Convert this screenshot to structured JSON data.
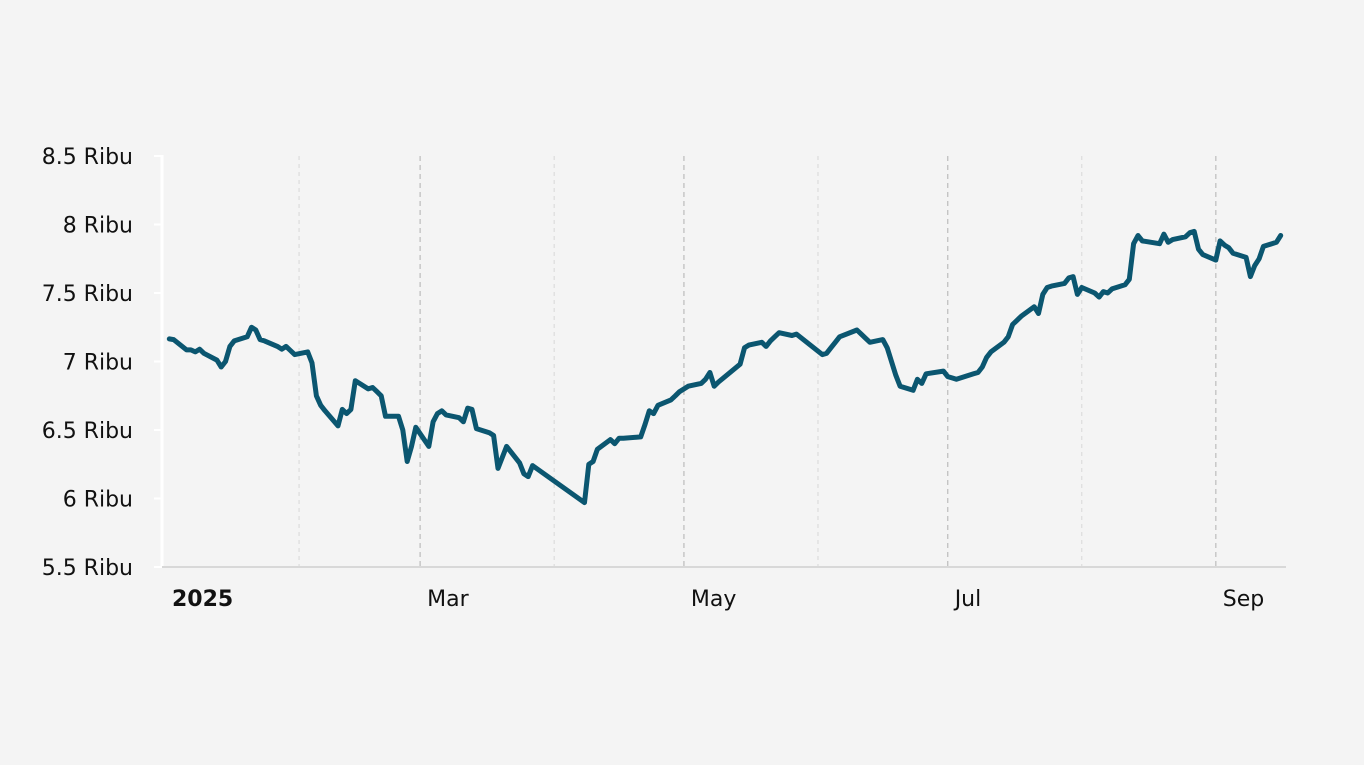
{
  "chart_data": {
    "type": "line",
    "title": "",
    "xlabel": "",
    "ylabel": "",
    "ylim": [
      5500,
      8500
    ],
    "xlim": [
      "2025-01-01",
      "2025-09-17"
    ],
    "y_ticks": [
      {
        "value": 5500,
        "label": "5.5 Ribu"
      },
      {
        "value": 6000,
        "label": "6 Ribu"
      },
      {
        "value": 6500,
        "label": "6.5 Ribu"
      },
      {
        "value": 7000,
        "label": "7 Ribu"
      },
      {
        "value": 7500,
        "label": "7.5 Ribu"
      },
      {
        "value": 8000,
        "label": "8 Ribu"
      },
      {
        "value": 8500,
        "label": "8.5 Ribu"
      }
    ],
    "x_ticks": [
      {
        "date": "2025-01-01",
        "label": "2025",
        "bold": true
      },
      {
        "date": "2025-03-01",
        "label": "Mar",
        "bold": false
      },
      {
        "date": "2025-05-01",
        "label": "May",
        "bold": false
      },
      {
        "date": "2025-07-01",
        "label": "Jul",
        "bold": false
      },
      {
        "date": "2025-09-01",
        "label": "Sep",
        "bold": false
      }
    ],
    "minor_gridlines": [
      "2025-02-01",
      "2025-04-01",
      "2025-06-01",
      "2025-08-01"
    ],
    "grid": true,
    "line_color": "#0b5670",
    "series": [
      {
        "x": [
          "2025-01-02",
          "2025-01-03",
          "2025-01-06",
          "2025-01-07",
          "2025-01-08",
          "2025-01-09",
          "2025-01-10",
          "2025-01-13",
          "2025-01-14",
          "2025-01-15",
          "2025-01-16",
          "2025-01-17",
          "2025-01-20",
          "2025-01-21",
          "2025-01-22",
          "2025-01-23",
          "2025-01-24",
          "2025-01-27",
          "2025-01-28",
          "2025-01-29",
          "2025-01-30",
          "2025-01-31",
          "2025-02-03",
          "2025-02-04",
          "2025-02-05",
          "2025-02-06",
          "2025-02-07",
          "2025-02-10",
          "2025-02-11",
          "2025-02-12",
          "2025-02-13",
          "2025-02-14",
          "2025-02-17",
          "2025-02-18",
          "2025-02-19",
          "2025-02-20",
          "2025-02-21",
          "2025-02-24",
          "2025-02-25",
          "2025-02-26",
          "2025-02-27",
          "2025-02-28",
          "2025-03-03",
          "2025-03-04",
          "2025-03-05",
          "2025-03-06",
          "2025-03-07",
          "2025-03-10",
          "2025-03-11",
          "2025-03-12",
          "2025-03-13",
          "2025-03-14",
          "2025-03-17",
          "2025-03-18",
          "2025-03-19",
          "2025-03-20",
          "2025-03-21",
          "2025-03-24",
          "2025-03-25",
          "2025-03-26",
          "2025-03-27",
          "2025-04-08",
          "2025-04-09",
          "2025-04-10",
          "2025-04-11",
          "2025-04-14",
          "2025-04-15",
          "2025-04-16",
          "2025-04-17",
          "2025-04-21",
          "2025-04-22",
          "2025-04-23",
          "2025-04-24",
          "2025-04-25",
          "2025-04-28",
          "2025-04-29",
          "2025-04-30",
          "2025-05-02",
          "2025-05-05",
          "2025-05-06",
          "2025-05-07",
          "2025-05-08",
          "2025-05-09",
          "2025-05-14",
          "2025-05-15",
          "2025-05-16",
          "2025-05-19",
          "2025-05-20",
          "2025-05-21",
          "2025-05-22",
          "2025-05-23",
          "2025-05-26",
          "2025-05-27",
          "2025-06-02",
          "2025-06-03",
          "2025-06-04",
          "2025-06-05",
          "2025-06-06",
          "2025-06-10",
          "2025-06-11",
          "2025-06-12",
          "2025-06-13",
          "2025-06-16",
          "2025-06-17",
          "2025-06-18",
          "2025-06-19",
          "2025-06-20",
          "2025-06-23",
          "2025-06-24",
          "2025-06-25",
          "2025-06-26",
          "2025-06-30",
          "2025-07-01",
          "2025-07-02",
          "2025-07-03",
          "2025-07-04",
          "2025-07-07",
          "2025-07-08",
          "2025-07-09",
          "2025-07-10",
          "2025-07-11",
          "2025-07-14",
          "2025-07-15",
          "2025-07-16",
          "2025-07-17",
          "2025-07-18",
          "2025-07-21",
          "2025-07-22",
          "2025-07-23",
          "2025-07-24",
          "2025-07-25",
          "2025-07-28",
          "2025-07-29",
          "2025-07-30",
          "2025-07-31",
          "2025-08-01",
          "2025-08-04",
          "2025-08-05",
          "2025-08-06",
          "2025-08-07",
          "2025-08-08",
          "2025-08-11",
          "2025-08-12",
          "2025-08-13",
          "2025-08-14",
          "2025-08-15",
          "2025-08-19",
          "2025-08-20",
          "2025-08-21",
          "2025-08-22",
          "2025-08-25",
          "2025-08-26",
          "2025-08-27",
          "2025-08-28",
          "2025-08-29",
          "2025-09-01",
          "2025-09-02",
          "2025-09-03",
          "2025-09-04",
          "2025-09-05",
          "2025-09-08",
          "2025-09-09",
          "2025-09-10",
          "2025-09-11",
          "2025-09-12",
          "2025-09-15",
          "2025-09-16"
        ],
        "y": [
          7165,
          7160,
          7085,
          7085,
          7070,
          7090,
          7060,
          7010,
          6960,
          7000,
          7110,
          7150,
          7180,
          7250,
          7230,
          7160,
          7150,
          7110,
          7090,
          7110,
          7080,
          7050,
          7070,
          6990,
          6750,
          6680,
          6640,
          6530,
          6650,
          6620,
          6650,
          6860,
          6800,
          6810,
          6780,
          6750,
          6600,
          6600,
          6500,
          6270,
          6380,
          6520,
          6380,
          6560,
          6620,
          6640,
          6610,
          6590,
          6560,
          6660,
          6650,
          6510,
          6480,
          6460,
          6220,
          6300,
          6380,
          6260,
          6180,
          6160,
          6240,
          5970,
          6250,
          6270,
          6360,
          6430,
          6400,
          6440,
          6440,
          6450,
          6540,
          6640,
          6620,
          6680,
          6720,
          6750,
          6780,
          6820,
          6840,
          6870,
          6920,
          6820,
          6850,
          6980,
          7100,
          7120,
          7140,
          7110,
          7150,
          7180,
          7210,
          7190,
          7200,
          7050,
          7060,
          7100,
          7140,
          7180,
          7230,
          7200,
          7170,
          7140,
          7160,
          7100,
          7000,
          6900,
          6820,
          6790,
          6870,
          6840,
          6910,
          6930,
          6890,
          6880,
          6870,
          6880,
          6910,
          6920,
          6960,
          7030,
          7070,
          7140,
          7180,
          7270,
          7300,
          7330,
          7400,
          7350,
          7490,
          7540,
          7550,
          7570,
          7610,
          7620,
          7490,
          7540,
          7500,
          7470,
          7510,
          7500,
          7530,
          7560,
          7600,
          7860,
          7920,
          7880,
          7860,
          7930,
          7870,
          7890,
          7910,
          7940,
          7950,
          7820,
          7780,
          7740,
          7880,
          7850,
          7830,
          7790,
          7760,
          7620,
          7700,
          7750,
          7840,
          7870,
          7920
        ]
      }
    ]
  }
}
